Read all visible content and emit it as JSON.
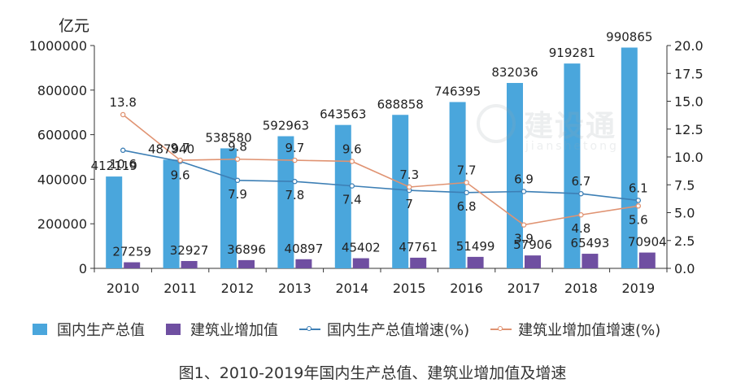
{
  "chart_data": {
    "type": "bar",
    "y_unit_label": "亿元",
    "categories": [
      "2010",
      "2011",
      "2012",
      "2013",
      "2014",
      "2015",
      "2016",
      "2017",
      "2018",
      "2019"
    ],
    "series": [
      {
        "name": "国内生产总值",
        "type": "bar",
        "axis": "left",
        "color": "#4aa6dc",
        "values": [
          412119,
          487940,
          538580,
          592963,
          643563,
          688858,
          746395,
          832036,
          919281,
          990865
        ]
      },
      {
        "name": "建筑业增加值",
        "type": "bar",
        "axis": "left",
        "color": "#6f4fa1",
        "values": [
          27259,
          32927,
          36896,
          40897,
          45402,
          47761,
          51499,
          57906,
          65493,
          70904
        ]
      },
      {
        "name": "国内生产总值增速(%)",
        "type": "line",
        "axis": "right",
        "color": "#3d7fb5",
        "values": [
          10.6,
          9.6,
          7.9,
          7.8,
          7.4,
          7,
          6.8,
          6.9,
          6.7,
          6.1
        ]
      },
      {
        "name": "建筑业增加值增速(%)",
        "type": "line",
        "axis": "right",
        "color": "#e09372",
        "values": [
          13.8,
          9.7,
          9.8,
          9.7,
          9.6,
          7.3,
          7.7,
          3.9,
          4.8,
          5.6
        ]
      }
    ],
    "ylim_left": [
      0,
      1000000
    ],
    "yticks_left": [
      "0",
      "200000",
      "400000",
      "600000",
      "800000",
      "1000000"
    ],
    "ylim_right": [
      0,
      20
    ],
    "yticks_right": [
      "0.0",
      "2.5",
      "5.0",
      "7.5",
      "10.0",
      "12.5",
      "15.0",
      "17.5",
      "20.0"
    ],
    "caption": "图1、2010-2019年国内生产总值、建筑业增加值及增速",
    "grid": false,
    "legend_position": "bottom"
  },
  "watermark": {
    "text": "建设通",
    "subtext": "jianshetong"
  }
}
